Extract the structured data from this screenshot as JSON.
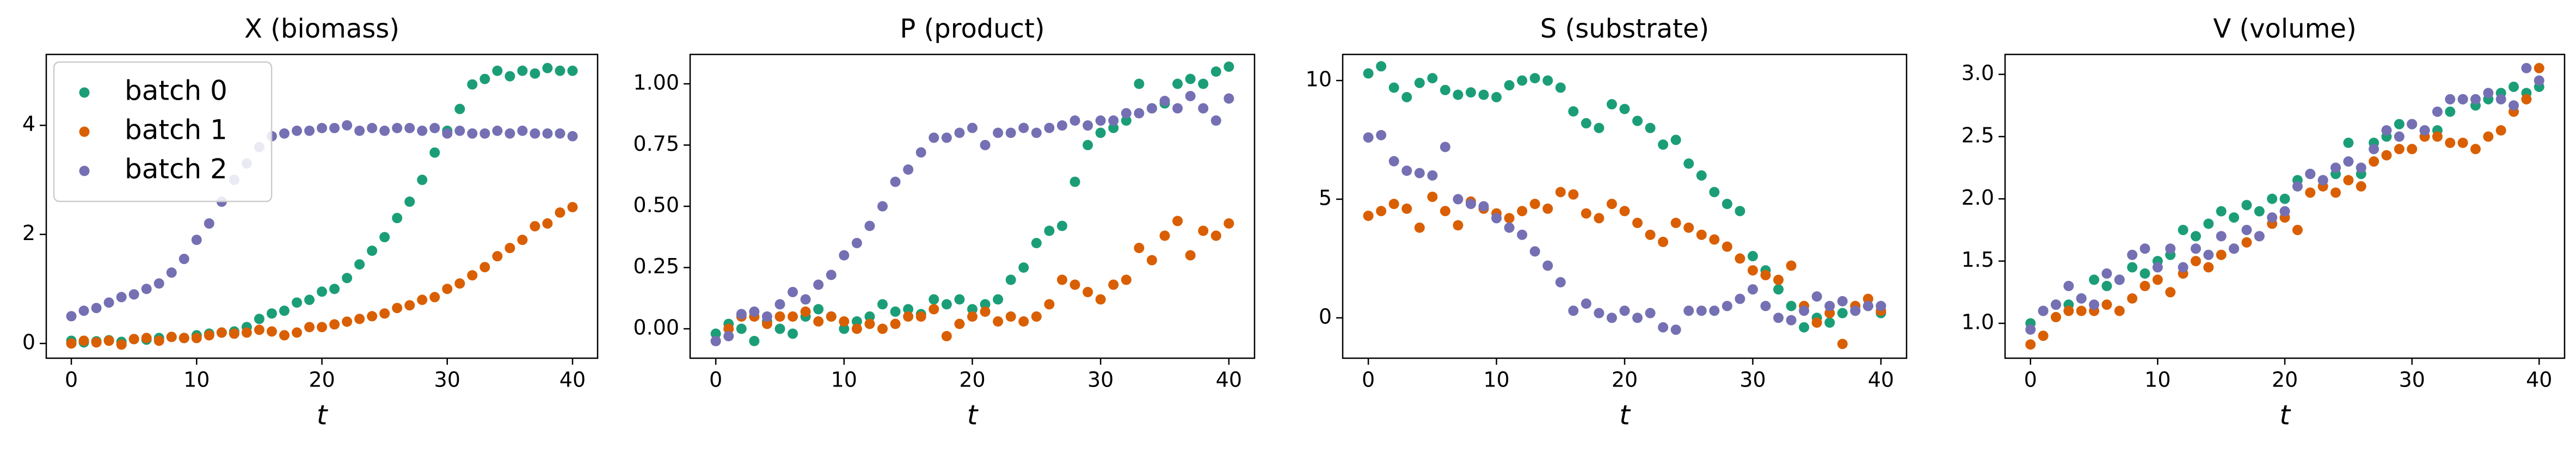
{
  "chart_data": [
    {
      "type": "scatter",
      "title": "X (biomass)",
      "xlabel": "t",
      "x": [
        0,
        1,
        2,
        3,
        4,
        5,
        6,
        7,
        8,
        9,
        10,
        11,
        12,
        13,
        14,
        15,
        16,
        17,
        18,
        19,
        20,
        21,
        22,
        23,
        24,
        25,
        26,
        27,
        28,
        29,
        30,
        31,
        32,
        33,
        34,
        35,
        36,
        37,
        38,
        39,
        40
      ],
      "xlim": [
        -2,
        42
      ],
      "xticks": [
        0,
        10,
        20,
        30,
        40
      ],
      "ylim": [
        -0.27,
        5.3
      ],
      "yticks": [
        0,
        2,
        4
      ],
      "legend": "upper left",
      "series": [
        {
          "name": "batch 0",
          "color": "#1b9e77",
          "values": [
            0.05,
            0.02,
            0.04,
            0.06,
            0.03,
            0.08,
            0.07,
            0.1,
            0.12,
            0.1,
            0.15,
            0.18,
            0.2,
            0.22,
            0.3,
            0.45,
            0.55,
            0.6,
            0.75,
            0.8,
            0.95,
            1.0,
            1.2,
            1.45,
            1.7,
            1.95,
            2.3,
            2.6,
            3.0,
            3.5,
            3.9,
            4.3,
            4.75,
            4.85,
            5.0,
            4.9,
            5.0,
            4.95,
            5.05,
            5.0,
            5.0
          ]
        },
        {
          "name": "batch 1",
          "color": "#d95f02",
          "values": [
            0.0,
            0.05,
            0.02,
            0.05,
            -0.02,
            0.08,
            0.1,
            0.05,
            0.12,
            0.1,
            0.1,
            0.15,
            0.2,
            0.18,
            0.2,
            0.25,
            0.22,
            0.15,
            0.2,
            0.3,
            0.3,
            0.35,
            0.4,
            0.45,
            0.5,
            0.55,
            0.65,
            0.7,
            0.8,
            0.85,
            1.0,
            1.1,
            1.25,
            1.4,
            1.6,
            1.75,
            1.9,
            2.15,
            2.2,
            2.4,
            2.5
          ]
        },
        {
          "name": "batch 2",
          "color": "#7570b3",
          "values": [
            0.5,
            0.6,
            0.65,
            0.75,
            0.85,
            0.9,
            1.0,
            1.1,
            1.3,
            1.55,
            1.9,
            2.2,
            2.6,
            3.0,
            3.3,
            3.6,
            3.8,
            3.85,
            3.9,
            3.9,
            3.95,
            3.95,
            4.0,
            3.9,
            3.95,
            3.9,
            3.95,
            3.95,
            3.9,
            3.95,
            3.85,
            3.9,
            3.85,
            3.85,
            3.9,
            3.85,
            3.9,
            3.85,
            3.85,
            3.85,
            3.8
          ]
        }
      ]
    },
    {
      "type": "scatter",
      "title": "P (product)",
      "xlabel": "t",
      "x": [
        0,
        1,
        2,
        3,
        4,
        5,
        6,
        7,
        8,
        9,
        10,
        11,
        12,
        13,
        14,
        15,
        16,
        17,
        18,
        19,
        20,
        21,
        22,
        23,
        24,
        25,
        26,
        27,
        28,
        29,
        30,
        31,
        32,
        33,
        34,
        35,
        36,
        37,
        38,
        39,
        40
      ],
      "xlim": [
        -2,
        42
      ],
      "xticks": [
        0,
        10,
        20,
        30,
        40
      ],
      "ylim": [
        -0.12,
        1.12
      ],
      "yticks": [
        {
          "value": 0,
          "label": "0.00"
        },
        0.25,
        {
          "value": 0.5,
          "label": "0.50"
        },
        0.75,
        {
          "value": 1,
          "label": "1.00"
        }
      ],
      "series": [
        {
          "color": "#1b9e77",
          "values": [
            -0.02,
            0.02,
            0.0,
            -0.05,
            0.03,
            0.0,
            -0.02,
            0.05,
            0.08,
            0.05,
            0.0,
            0.03,
            0.05,
            0.1,
            0.07,
            0.08,
            0.06,
            0.12,
            0.1,
            0.12,
            0.08,
            0.1,
            0.12,
            0.2,
            0.25,
            0.35,
            0.4,
            0.42,
            0.6,
            0.75,
            0.8,
            0.82,
            0.85,
            1.0,
            0.9,
            0.92,
            1.0,
            1.02,
            1.0,
            1.05,
            1.07
          ]
        },
        {
          "color": "#d95f02",
          "values": [
            -0.05,
            0.0,
            0.05,
            0.05,
            0.02,
            0.05,
            0.05,
            0.07,
            0.03,
            0.05,
            0.03,
            0.0,
            0.02,
            0.0,
            0.02,
            0.05,
            0.05,
            0.08,
            -0.03,
            0.02,
            0.05,
            0.07,
            0.03,
            0.05,
            0.03,
            0.05,
            0.1,
            0.2,
            0.18,
            0.15,
            0.12,
            0.18,
            0.2,
            0.33,
            0.28,
            0.38,
            0.44,
            0.3,
            0.4,
            0.38,
            0.43
          ]
        },
        {
          "color": "#7570b3",
          "values": [
            -0.05,
            -0.03,
            0.06,
            0.07,
            0.05,
            0.1,
            0.15,
            0.12,
            0.18,
            0.22,
            0.3,
            0.35,
            0.42,
            0.5,
            0.6,
            0.65,
            0.72,
            0.78,
            0.78,
            0.8,
            0.82,
            0.75,
            0.8,
            0.8,
            0.82,
            0.8,
            0.82,
            0.83,
            0.85,
            0.83,
            0.85,
            0.85,
            0.88,
            0.88,
            0.9,
            0.93,
            0.9,
            0.95,
            0.9,
            0.85,
            0.94
          ]
        }
      ]
    },
    {
      "type": "scatter",
      "title": "S (substrate)",
      "xlabel": "t",
      "x": [
        0,
        1,
        2,
        3,
        4,
        5,
        6,
        7,
        8,
        9,
        10,
        11,
        12,
        13,
        14,
        15,
        16,
        17,
        18,
        19,
        20,
        21,
        22,
        23,
        24,
        25,
        26,
        27,
        28,
        29,
        30,
        31,
        32,
        33,
        34,
        35,
        36,
        37,
        38,
        39,
        40
      ],
      "xlim": [
        -2,
        42
      ],
      "xticks": [
        0,
        10,
        20,
        30,
        40
      ],
      "ylim": [
        -1.7,
        11.1
      ],
      "yticks": [
        0,
        5,
        10
      ],
      "series": [
        {
          "color": "#1b9e77",
          "values": [
            10.3,
            10.6,
            9.7,
            9.3,
            9.9,
            10.1,
            9.6,
            9.4,
            9.5,
            9.4,
            9.3,
            9.8,
            10.0,
            10.1,
            10.0,
            9.7,
            8.7,
            8.2,
            8.0,
            9.0,
            8.8,
            8.3,
            8.0,
            7.3,
            7.5,
            6.5,
            6.0,
            5.3,
            4.8,
            4.5,
            2.6,
            2.0,
            1.2,
            0.5,
            -0.4,
            0.0,
            -0.2,
            0.2,
            0.3,
            0.5,
            0.2
          ]
        },
        {
          "color": "#d95f02",
          "values": [
            4.3,
            4.5,
            4.8,
            4.6,
            3.8,
            5.1,
            4.5,
            3.9,
            4.9,
            4.6,
            4.4,
            4.2,
            4.5,
            4.8,
            4.6,
            5.3,
            5.2,
            4.4,
            4.2,
            4.8,
            4.5,
            4.0,
            3.5,
            3.2,
            4.0,
            3.8,
            3.5,
            3.3,
            3.0,
            2.5,
            2.0,
            1.8,
            1.6,
            2.2,
            0.5,
            -0.2,
            0.2,
            -1.1,
            0.5,
            0.8,
            0.3
          ]
        },
        {
          "color": "#7570b3",
          "values": [
            7.6,
            7.7,
            6.6,
            6.2,
            6.1,
            6.0,
            7.2,
            5.0,
            4.8,
            4.7,
            4.2,
            3.8,
            3.5,
            2.8,
            2.2,
            1.5,
            0.3,
            0.6,
            0.2,
            0.0,
            0.3,
            0.0,
            0.2,
            -0.4,
            -0.5,
            0.3,
            0.3,
            0.3,
            0.5,
            0.8,
            1.2,
            0.5,
            0.0,
            -0.1,
            0.3,
            0.9,
            0.5,
            0.7,
            0.3,
            0.5,
            0.5
          ]
        }
      ]
    },
    {
      "type": "scatter",
      "title": "V (volume)",
      "xlabel": "t",
      "x": [
        0,
        1,
        2,
        3,
        4,
        5,
        6,
        7,
        8,
        9,
        10,
        11,
        12,
        13,
        14,
        15,
        16,
        17,
        18,
        19,
        20,
        21,
        22,
        23,
        24,
        25,
        26,
        27,
        28,
        29,
        30,
        31,
        32,
        33,
        34,
        35,
        36,
        37,
        38,
        39,
        40
      ],
      "xlim": [
        -2,
        42
      ],
      "xticks": [
        0,
        10,
        20,
        30,
        40
      ],
      "ylim": [
        0.72,
        3.16
      ],
      "yticks": [
        {
          "value": 1,
          "label": "1.0"
        },
        1.5,
        {
          "value": 2,
          "label": "2.0"
        },
        2.5,
        {
          "value": 3,
          "label": "3.0"
        }
      ],
      "series": [
        {
          "color": "#1b9e77",
          "values": [
            1.0,
            1.1,
            1.15,
            1.15,
            1.2,
            1.35,
            1.3,
            1.35,
            1.45,
            1.4,
            1.5,
            1.55,
            1.75,
            1.7,
            1.8,
            1.9,
            1.85,
            1.95,
            1.9,
            2.0,
            2.0,
            2.15,
            2.2,
            2.15,
            2.2,
            2.45,
            2.2,
            2.45,
            2.5,
            2.6,
            2.6,
            2.55,
            2.55,
            2.7,
            2.8,
            2.75,
            2.8,
            2.85,
            2.9,
            2.85,
            2.9
          ]
        },
        {
          "color": "#d95f02",
          "values": [
            0.83,
            0.9,
            1.05,
            1.1,
            1.1,
            1.1,
            1.15,
            1.1,
            1.2,
            1.3,
            1.35,
            1.25,
            1.4,
            1.5,
            1.45,
            1.55,
            1.6,
            1.65,
            1.7,
            1.8,
            1.85,
            1.75,
            2.05,
            2.1,
            2.05,
            2.15,
            2.1,
            2.3,
            2.35,
            2.4,
            2.4,
            2.5,
            2.5,
            2.45,
            2.45,
            2.4,
            2.5,
            2.55,
            2.7,
            2.8,
            3.05
          ]
        },
        {
          "color": "#7570b3",
          "values": [
            0.95,
            1.1,
            1.15,
            1.3,
            1.2,
            1.15,
            1.4,
            1.35,
            1.55,
            1.6,
            1.45,
            1.6,
            1.45,
            1.6,
            1.55,
            1.7,
            1.6,
            1.75,
            1.7,
            1.85,
            1.9,
            2.1,
            2.2,
            2.15,
            2.25,
            2.3,
            2.25,
            2.4,
            2.55,
            2.5,
            2.6,
            2.55,
            2.7,
            2.8,
            2.8,
            2.8,
            2.85,
            2.8,
            2.75,
            3.05,
            2.95
          ]
        }
      ]
    }
  ]
}
